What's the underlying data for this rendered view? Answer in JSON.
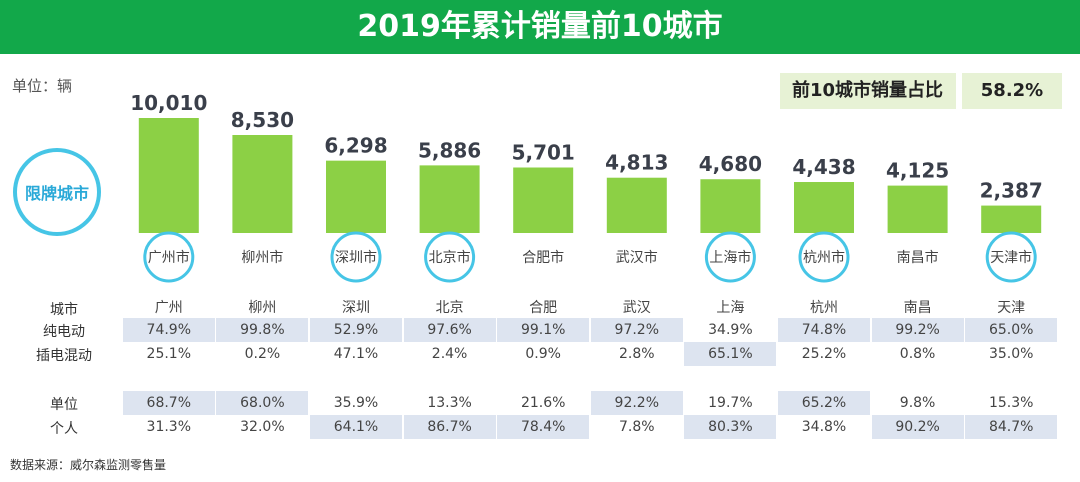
{
  "title": "2019年累计销量前10城市",
  "unit_label": "单位：辆",
  "share_label": "前10城市销量占比",
  "share_value": "58.2%",
  "restricted_label": "限牌城市",
  "source": "数据来源：威尔森监测零售量",
  "colors": {
    "title_bg": "#12a84a",
    "bar": "#8cd045",
    "highlight": "#dde4f0",
    "ring": "#46c5e6"
  },
  "chart_data": {
    "type": "bar",
    "categories": [
      "广州市",
      "柳州市",
      "深圳市",
      "北京市",
      "合肥市",
      "武汉市",
      "上海市",
      "杭州市",
      "南昌市",
      "天津市"
    ],
    "values": [
      10010,
      8530,
      6298,
      5886,
      5701,
      4813,
      4680,
      4438,
      4125,
      2387
    ],
    "value_labels": [
      "10,010",
      "8,530",
      "6,298",
      "5,886",
      "5,701",
      "4,813",
      "4,680",
      "4,438",
      "4,125",
      "2,387"
    ],
    "restricted": [
      true,
      false,
      true,
      true,
      false,
      false,
      true,
      true,
      false,
      true
    ],
    "ylim": [
      0,
      10010
    ]
  },
  "table": {
    "rows": [
      {
        "label": "城市",
        "values": [
          "广州",
          "柳州",
          "深圳",
          "北京",
          "合肥",
          "武汉",
          "上海",
          "杭州",
          "南昌",
          "天津"
        ],
        "highlight": [
          false,
          false,
          false,
          false,
          false,
          false,
          false,
          false,
          false,
          false
        ]
      },
      {
        "label": "纯电动",
        "values": [
          "74.9%",
          "99.8%",
          "52.9%",
          "97.6%",
          "99.1%",
          "97.2%",
          "34.9%",
          "74.8%",
          "99.2%",
          "65.0%"
        ],
        "highlight": [
          true,
          true,
          true,
          true,
          true,
          true,
          false,
          true,
          true,
          true
        ]
      },
      {
        "label": "插电混动",
        "values": [
          "25.1%",
          "0.2%",
          "47.1%",
          "2.4%",
          "0.9%",
          "2.8%",
          "65.1%",
          "25.2%",
          "0.8%",
          "35.0%"
        ],
        "highlight": [
          false,
          false,
          false,
          false,
          false,
          false,
          true,
          false,
          false,
          false
        ]
      },
      {
        "label": "单位",
        "values": [
          "68.7%",
          "68.0%",
          "35.9%",
          "13.3%",
          "21.6%",
          "92.2%",
          "19.7%",
          "65.2%",
          "9.8%",
          "15.3%"
        ],
        "highlight": [
          true,
          true,
          false,
          false,
          false,
          true,
          false,
          true,
          false,
          false
        ]
      },
      {
        "label": "个人",
        "values": [
          "31.3%",
          "32.0%",
          "64.1%",
          "86.7%",
          "78.4%",
          "7.8%",
          "80.3%",
          "34.8%",
          "90.2%",
          "84.7%"
        ],
        "highlight": [
          false,
          false,
          true,
          true,
          true,
          false,
          true,
          false,
          true,
          true
        ]
      }
    ]
  }
}
